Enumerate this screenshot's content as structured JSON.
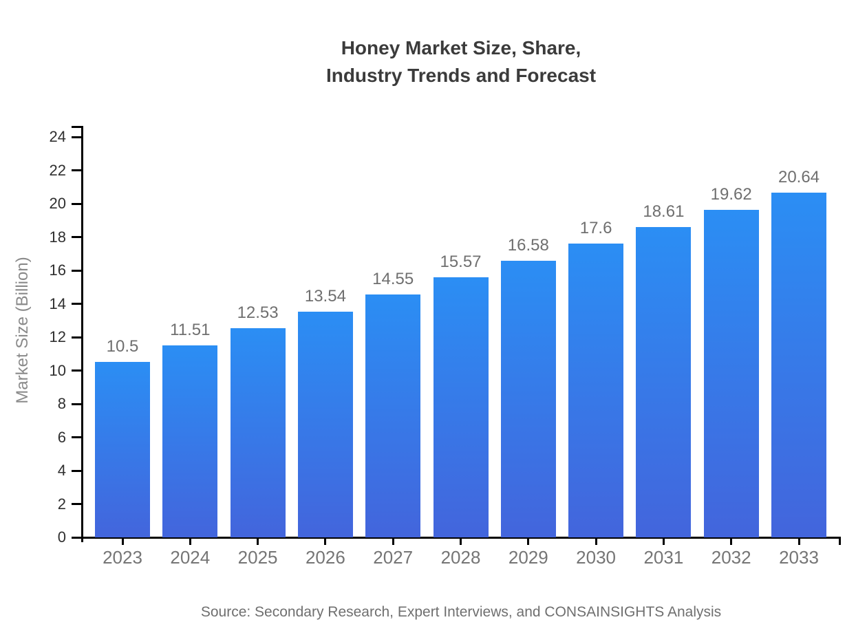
{
  "title": "Honey Market Size, Share,\nIndustry Trends and Forecast",
  "source": "Source: Secondary Research, Expert Interviews, and CONSAINSIGHTS Analysis",
  "colors": {
    "bar_gradient_top": "#2b8ef4",
    "bar_gradient_bottom": "#4365dc",
    "axis": "#000000",
    "title_text": "#3b3b3b",
    "ytick_text": "#2f2f2f",
    "xtick_text": "#757575",
    "value_label_text": "#6f6f6f",
    "ylabel_text": "#8a8a8a",
    "source_text": "#6f6f6f"
  },
  "chart_data": {
    "type": "bar",
    "title": "Honey Market Size, Share, Industry Trends and Forecast",
    "categories": [
      "2023",
      "2024",
      "2025",
      "2026",
      "2027",
      "2028",
      "2029",
      "2030",
      "2031",
      "2032",
      "2033"
    ],
    "values": [
      10.5,
      11.51,
      12.53,
      13.54,
      14.55,
      15.57,
      16.58,
      17.6,
      18.61,
      19.62,
      20.64
    ],
    "value_labels": [
      "10.5",
      "11.51",
      "12.53",
      "13.54",
      "14.55",
      "15.57",
      "16.58",
      "17.6",
      "18.61",
      "19.62",
      "20.64"
    ],
    "xlabel": "",
    "ylabel": "Market Size (Billion)",
    "ylim": [
      0,
      24
    ],
    "ytick_step": 2,
    "ytick_labels": [
      "0",
      "2",
      "4",
      "6",
      "8",
      "10",
      "12",
      "14",
      "16",
      "18",
      "20",
      "22",
      "24"
    ],
    "grid": false,
    "legend": "none"
  }
}
